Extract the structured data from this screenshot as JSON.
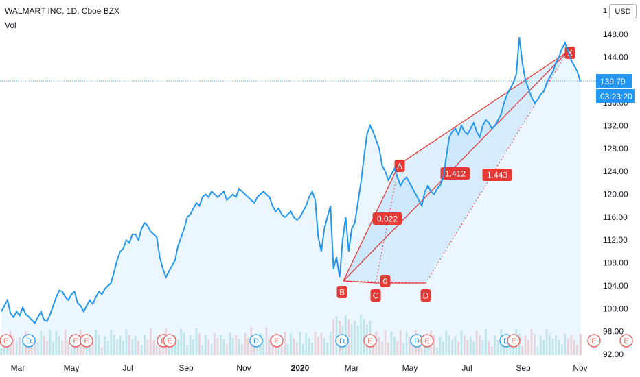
{
  "header": {
    "symbol_line": "WALMART INC, 1D, Cboe BZX",
    "volume_label": "Vol",
    "currency_button": "USD",
    "top_partial_tick": "1"
  },
  "chart_data": {
    "type": "line",
    "title": "WALMART INC, 1D, Cboe BZX",
    "ylim": [
      92,
      150
    ],
    "y_ticks": [
      "148.00",
      "144.00",
      "140.00",
      "136.00",
      "132.00",
      "128.00",
      "124.00",
      "120.00",
      "116.00",
      "112.00",
      "108.00",
      "104.00",
      "100.00",
      "96.00",
      "92.00"
    ],
    "x_tick_labels": [
      "Mar",
      "May",
      "Jul",
      "Sep",
      "Nov",
      "2020",
      "Mar",
      "May",
      "Jul",
      "Sep",
      "Nov"
    ],
    "last_price": "139.79",
    "countdown": "03:23:20",
    "colors": {
      "line": "#2196f3",
      "pattern": "#e53935",
      "up_volume": "#26a69a",
      "down_volume": "#ef5350",
      "price_tag": "#2196f3"
    },
    "series": [
      {
        "values": [
          99.5,
          100.5,
          101.5,
          99.2,
          98.5,
          99.5,
          98.8,
          100.2,
          99.0,
          98.6,
          98.0,
          97.5,
          98.5,
          99.5,
          98.0,
          97.8,
          99.0,
          100.5,
          102.0,
          103.2,
          103.0,
          102.0,
          101.5,
          102.5,
          103.0,
          101.0,
          100.5,
          99.5,
          100.5,
          101.5,
          100.8,
          102.0,
          103.0,
          102.5,
          103.5,
          104.0,
          104.5,
          106.5,
          108.5,
          110.0,
          110.5,
          112.0,
          111.5,
          113.0,
          113.0,
          112.0,
          114.0,
          115.0,
          114.5,
          113.5,
          113.0,
          112.5,
          109.0,
          107.0,
          105.5,
          106.5,
          107.5,
          108.5,
          111.0,
          112.5,
          114.0,
          116.0,
          116.5,
          117.5,
          118.5,
          118.0,
          119.5,
          120.0,
          119.5,
          120.5,
          120.0,
          119.5,
          120.0,
          120.5,
          119.0,
          119.5,
          120.0,
          119.5,
          121.0,
          120.5,
          120.0,
          119.5,
          119.0,
          118.5,
          119.5,
          120.0,
          120.5,
          120.0,
          119.5,
          118.0,
          117.0,
          117.5,
          116.5,
          116.0,
          116.5,
          117.0,
          116.0,
          115.5,
          116.0,
          117.0,
          118.0,
          119.5,
          120.5,
          119.0,
          112.5,
          110.0,
          114.0,
          116.0,
          118.0,
          107.0,
          109.0,
          105.5,
          112.0,
          116.0,
          110.0,
          114.0,
          115.0,
          118.5,
          122.0,
          126.5,
          130.5,
          132.0,
          131.0,
          129.5,
          128.0,
          125.0,
          124.0,
          122.5,
          123.5,
          124.5,
          123.0,
          121.5,
          122.5,
          123.0,
          122.0,
          121.0,
          120.0,
          119.0,
          118.0,
          120.5,
          121.5,
          120.5,
          120.0,
          121.0,
          121.5,
          123.0,
          126.5,
          130.0,
          131.0,
          131.5,
          130.5,
          132.0,
          131.0,
          130.5,
          131.5,
          132.5,
          131.0,
          130.0,
          132.0,
          133.0,
          132.5,
          131.5,
          132.0,
          133.0,
          134.0,
          136.0,
          137.5,
          138.5,
          139.5,
          141.0,
          147.5,
          143.0,
          140.0,
          138.5,
          137.0,
          136.0,
          136.5,
          137.5,
          138.0,
          139.5,
          140.5,
          141.5,
          143.0,
          144.0,
          145.5,
          146.5,
          145.0,
          143.5,
          142.5,
          141.5,
          139.79
        ]
      }
    ],
    "pattern_labels": {
      "A": "A",
      "B": "B",
      "C": "C",
      "D": "D",
      "X": "X",
      "ratio_bc": "0",
      "ratio_xb": "0.022",
      "ratio_ac": "1.412",
      "ratio_bd": "1.443"
    },
    "event_markers": [
      "E",
      "D",
      "E",
      "E",
      "E",
      "E",
      "D",
      "E",
      "D",
      "E",
      "D",
      "E",
      "D",
      "E",
      "E",
      "E"
    ]
  }
}
